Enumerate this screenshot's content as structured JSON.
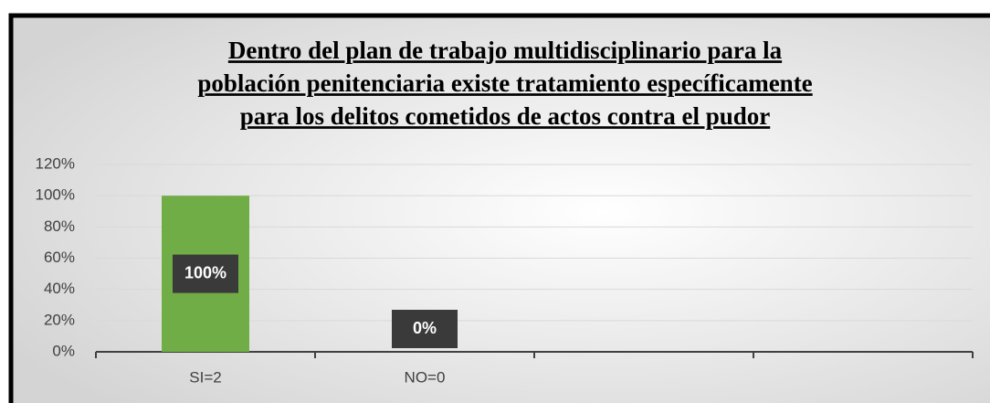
{
  "chart_data": {
    "type": "bar",
    "title": [
      "Dentro del plan de trabajo multidisciplinario para la",
      "población penitenciaria existe tratamiento específicamente",
      "para los delitos cometidos de actos contra el pudor"
    ],
    "categories": [
      "SI=2",
      "NO=0",
      null,
      null
    ],
    "values": [
      100,
      0,
      null,
      null
    ],
    "value_labels": [
      "100%",
      "0%",
      null,
      null
    ],
    "color": "#70ad47",
    "ylim": [
      0,
      120
    ],
    "yticks": [
      {
        "value": 0,
        "label": "0%"
      },
      {
        "value": 20,
        "label": "20%"
      },
      {
        "value": 40,
        "label": "40%"
      },
      {
        "value": 60,
        "label": "60%"
      },
      {
        "value": 80,
        "label": "80%"
      },
      {
        "value": 100,
        "label": "100%"
      },
      {
        "value": 120,
        "label": "120%"
      }
    ],
    "grid": true
  }
}
